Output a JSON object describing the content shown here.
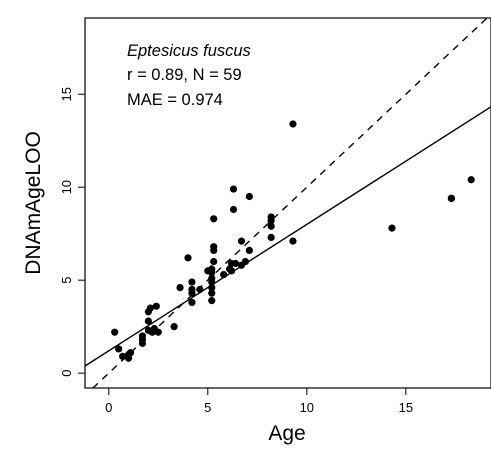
{
  "chart_data": {
    "type": "scatter",
    "title": "",
    "xlabel": "Age",
    "ylabel": "DNAmAgeLOO",
    "xlim": [
      -1.2,
      19.3
    ],
    "ylim": [
      -0.8,
      19.1
    ],
    "x_ticks": [
      0,
      5,
      10,
      15
    ],
    "y_ticks": [
      0,
      5,
      10,
      15
    ],
    "x_tick_labels": [
      "0",
      "5",
      "10",
      "15"
    ],
    "y_tick_labels": [
      "0",
      "5",
      "10",
      "15"
    ],
    "grid": false,
    "legend": "none",
    "annotations": {
      "species": "Eptesicus fuscus",
      "stats": "r = 0.89, N = 59",
      "mae": "MAE = 0.974"
    },
    "identity_line": {
      "style": "dashed",
      "slope": 1,
      "intercept": 0
    },
    "regression_line": {
      "style": "solid",
      "slope": 0.68,
      "intercept": 1.2
    },
    "series": [
      {
        "points": [
          [
            0.3,
            2.2
          ],
          [
            0.5,
            1.3
          ],
          [
            0.7,
            0.9
          ],
          [
            1.0,
            0.8
          ],
          [
            1.0,
            1.0
          ],
          [
            1.1,
            1.1
          ],
          [
            1.7,
            1.6
          ],
          [
            1.7,
            1.8
          ],
          [
            1.7,
            2.0
          ],
          [
            2.0,
            2.3
          ],
          [
            2.0,
            2.8
          ],
          [
            2.0,
            3.3
          ],
          [
            2.1,
            3.5
          ],
          [
            2.2,
            2.2
          ],
          [
            2.3,
            2.4
          ],
          [
            2.4,
            3.6
          ],
          [
            2.5,
            2.2
          ],
          [
            3.3,
            2.5
          ],
          [
            3.6,
            4.6
          ],
          [
            4.0,
            6.2
          ],
          [
            4.2,
            4.3
          ],
          [
            4.2,
            4.5
          ],
          [
            4.2,
            4.9
          ],
          [
            4.2,
            3.8
          ],
          [
            4.6,
            4.5
          ],
          [
            5.0,
            5.5
          ],
          [
            5.2,
            3.9
          ],
          [
            5.2,
            4.3
          ],
          [
            5.2,
            4.6
          ],
          [
            5.2,
            4.9
          ],
          [
            5.2,
            5.1
          ],
          [
            5.2,
            5.4
          ],
          [
            5.2,
            5.6
          ],
          [
            5.3,
            6.0
          ],
          [
            5.3,
            6.6
          ],
          [
            5.3,
            6.8
          ],
          [
            5.3,
            8.3
          ],
          [
            5.8,
            5.3
          ],
          [
            6.1,
            5.6
          ],
          [
            6.2,
            5.5
          ],
          [
            6.2,
            5.9
          ],
          [
            6.3,
            8.8
          ],
          [
            6.3,
            9.9
          ],
          [
            6.4,
            5.9
          ],
          [
            6.7,
            5.8
          ],
          [
            6.7,
            7.1
          ],
          [
            6.9,
            6.0
          ],
          [
            7.1,
            6.6
          ],
          [
            7.1,
            9.5
          ],
          [
            8.2,
            7.3
          ],
          [
            8.2,
            7.9
          ],
          [
            8.2,
            8.2
          ],
          [
            8.2,
            8.4
          ],
          [
            9.3,
            7.1
          ],
          [
            9.3,
            13.4
          ],
          [
            14.3,
            7.8
          ],
          [
            17.3,
            9.4
          ],
          [
            17.3,
            9.4
          ],
          [
            18.3,
            10.4
          ]
        ]
      }
    ]
  }
}
